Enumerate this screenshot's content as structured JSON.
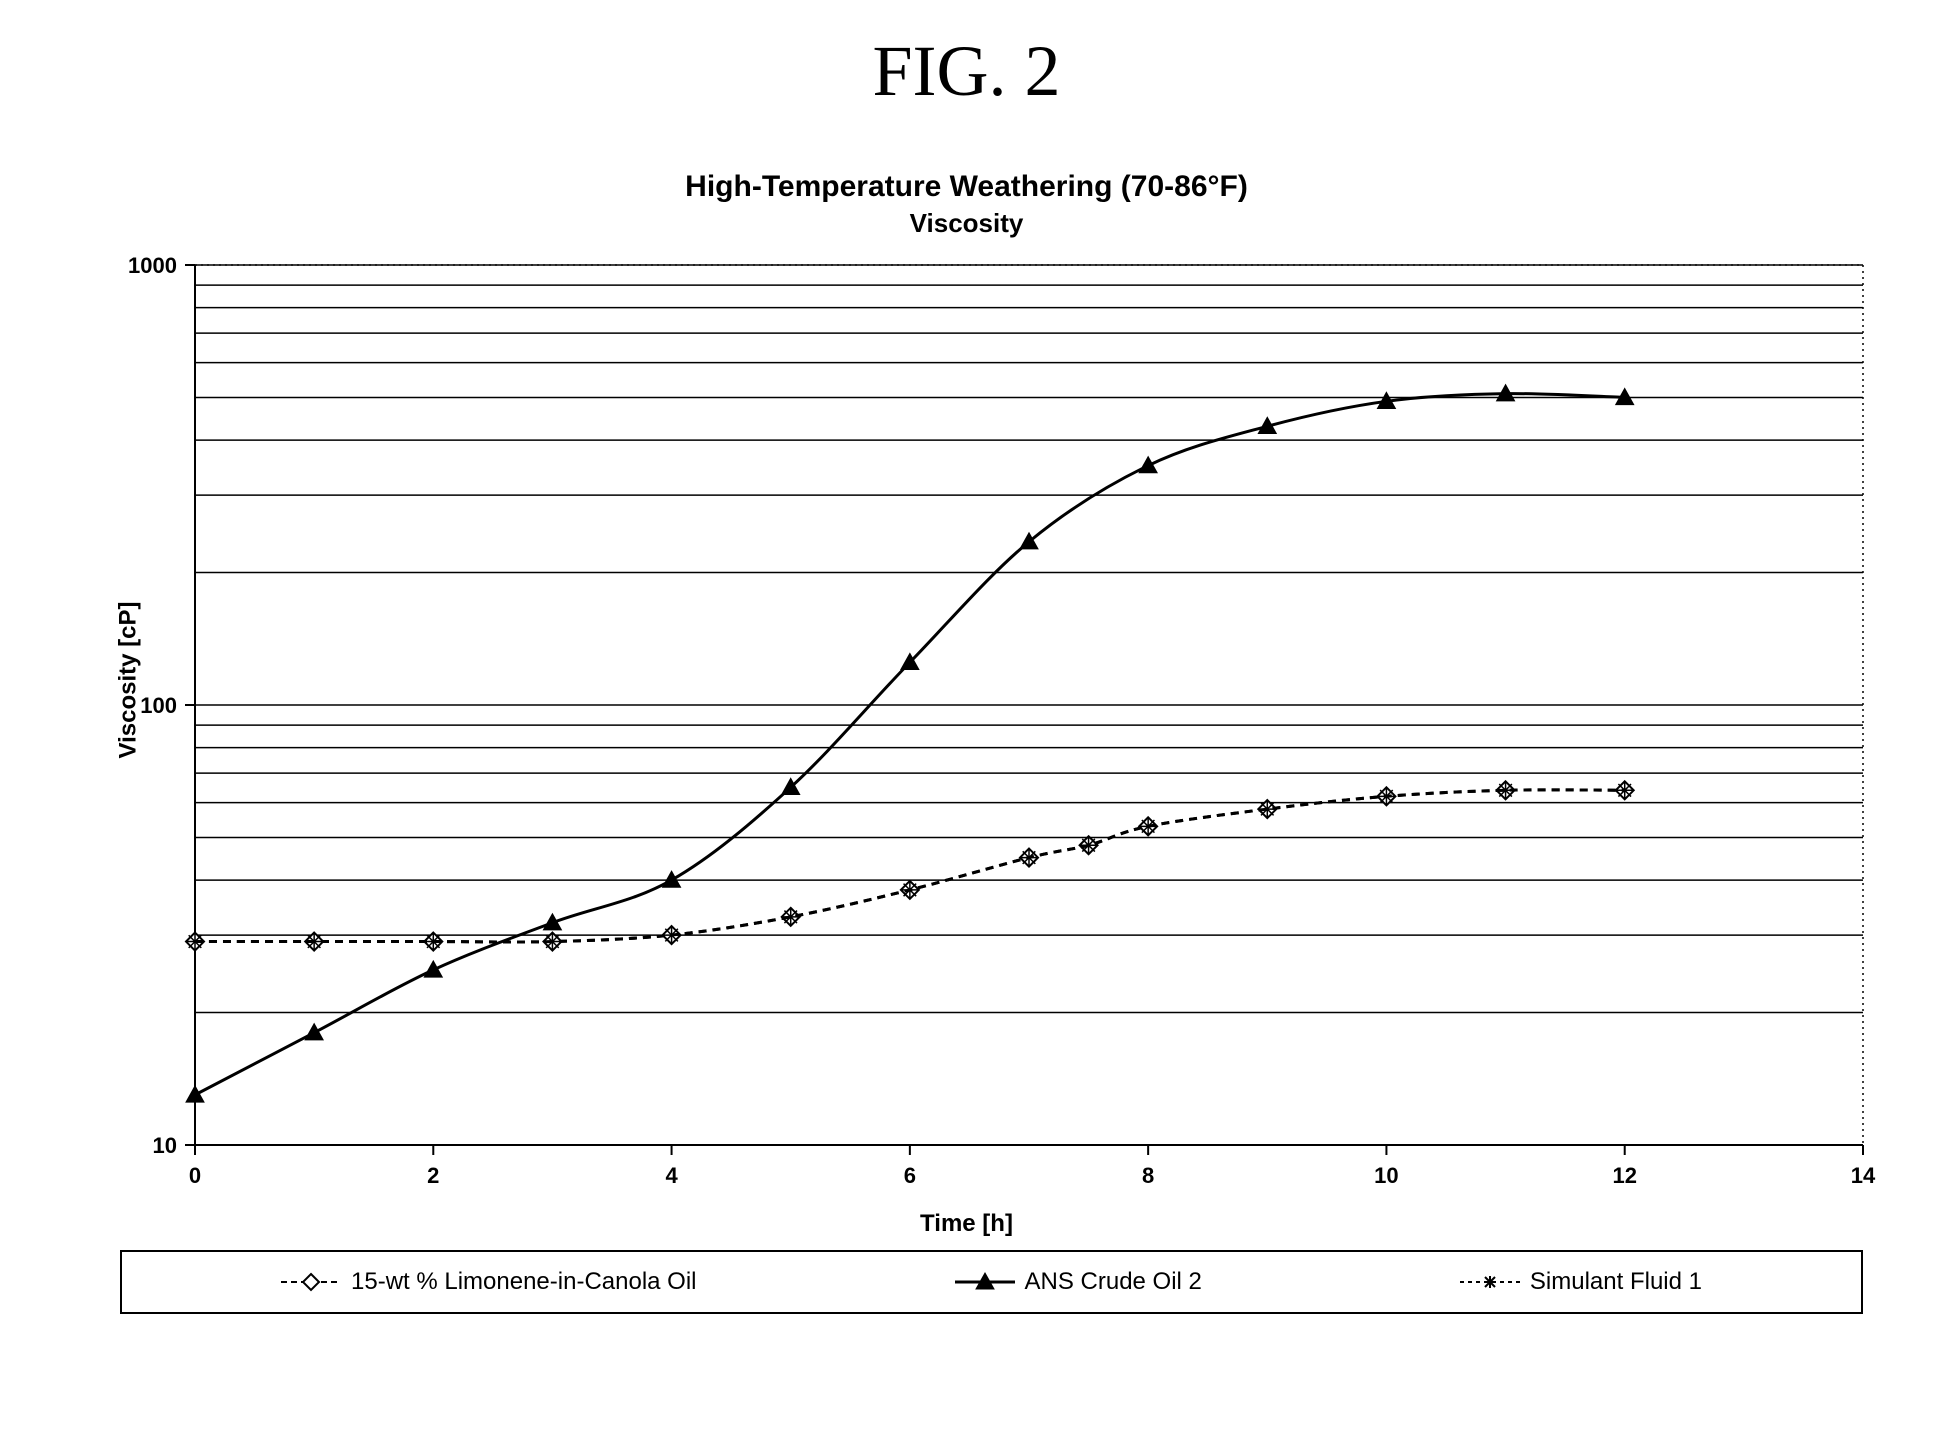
{
  "figure": {
    "caption": "FIG. 2",
    "title": "High-Temperature Weathering (70-86°F)",
    "subtitle": "Viscosity",
    "xlabel": "Time [h]",
    "ylabel": "Viscosity [cP]"
  },
  "chart": {
    "type": "line",
    "background_color": "#ffffff",
    "grid_color": "#000000",
    "plot_border_style": "dotted",
    "border_color": "#000000",
    "x_axis": {
      "min": 0,
      "max": 14,
      "tick_step": 2,
      "ticks": [
        0,
        2,
        4,
        6,
        8,
        10,
        12,
        14
      ],
      "scale": "linear",
      "label_fontsize": 22,
      "label_fontweight": "bold",
      "label_color": "#000000"
    },
    "y_axis": {
      "min": 10,
      "max": 1000,
      "scale": "log",
      "tick_labels": [
        10,
        100,
        1000
      ],
      "minor_gridlines": [
        20,
        30,
        40,
        50,
        60,
        70,
        80,
        90,
        200,
        300,
        400,
        500,
        600,
        700,
        800,
        900
      ],
      "label_fontsize": 22,
      "label_fontweight": "bold",
      "label_color": "#000000"
    },
    "line_width": 3,
    "marker_size": 9,
    "series": [
      {
        "name": "15-wt % Limonene-in-Canola Oil",
        "marker": "diamond-open",
        "line_dash": "dash",
        "color": "#000000",
        "x": [
          0,
          1,
          2,
          3,
          4,
          5,
          6,
          7,
          7.5,
          8,
          9,
          10,
          11,
          12
        ],
        "y": [
          29,
          29,
          29,
          29,
          30,
          33,
          38,
          45,
          48,
          53,
          58,
          62,
          64,
          64
        ]
      },
      {
        "name": "ANS Crude Oil 2",
        "marker": "triangle",
        "line_dash": "solid",
        "color": "#000000",
        "x": [
          0,
          1,
          2,
          3,
          4,
          5,
          6,
          7,
          8,
          9,
          10,
          11,
          12
        ],
        "y": [
          13,
          18,
          25,
          32,
          40,
          65,
          125,
          235,
          350,
          430,
          490,
          510,
          500
        ]
      },
      {
        "name": "Simulant Fluid 1",
        "marker": "asterisk-open",
        "line_dash": "dash",
        "color": "#000000",
        "x": [
          0,
          1,
          2,
          3,
          4,
          5,
          6,
          7,
          7.5,
          8,
          9,
          10,
          11,
          12
        ],
        "y": [
          29,
          29,
          29,
          29,
          30,
          33,
          38,
          45,
          48,
          53,
          58,
          62,
          64,
          64
        ]
      }
    ]
  },
  "legend": {
    "position": "bottom",
    "border_color": "#000000",
    "font_size": 24,
    "font_color": "#000000"
  },
  "fonts": {
    "caption_family": "Times New Roman",
    "caption_size_pt": 54,
    "title_size_pt": 22,
    "axis_label_size_pt": 18,
    "tick_label_size_pt": 16
  }
}
